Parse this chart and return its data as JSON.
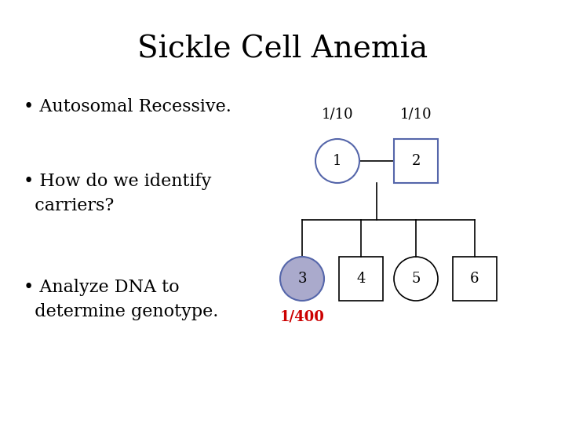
{
  "title": "Sickle Cell Anemia",
  "background_color": "#ffffff",
  "text_color": "#000000",
  "bullet1": "• Autosomal Recessive.",
  "bullet2": "• How do we identify\n  carriers?",
  "bullet3": "• Analyze DNA to\n  determine genotype.",
  "freq_label": "1/10",
  "prob_label": "1/400",
  "prob_color": "#cc0000",
  "node_labels": [
    "1",
    "2",
    "3",
    "4",
    "5",
    "6"
  ],
  "node3_fill": "#aaaacc",
  "node_edge_color_parents": "#5566aa",
  "node_edge_color_children": "#000000",
  "node_text_color": "#000000",
  "title_fontsize": 28,
  "bullet_fontsize": 16,
  "diagram_fontsize": 13,
  "freq_fontsize": 13
}
